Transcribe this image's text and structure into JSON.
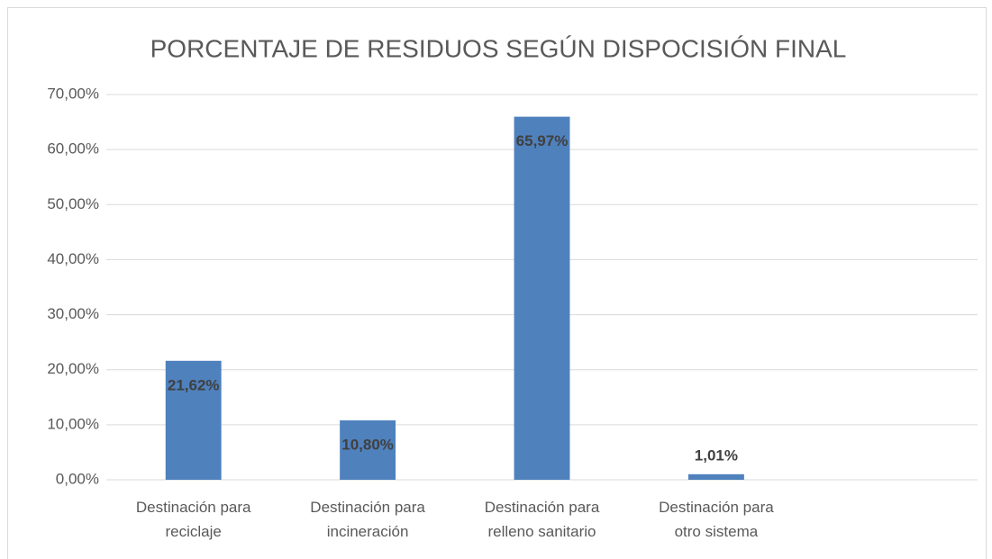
{
  "chart_data": {
    "type": "bar",
    "title": "PORCENTAJE DE RESIDUOS SEGÚN DISPOCISIÓN FINAL",
    "categories": [
      "Destinación para reciclaje",
      "Destinación para incineración",
      "Destinación para relleno sanitario",
      "Destinación para otro sistema",
      null
    ],
    "values": [
      21.62,
      10.8,
      65.97,
      1.01,
      null
    ],
    "value_labels": [
      "21,62%",
      "10,80%",
      "65,97%",
      "1,01%",
      null
    ],
    "color": "#4f81bd",
    "ylim": [
      0,
      70
    ],
    "yticks": [
      {
        "value": 0,
        "label": "0,00%"
      },
      {
        "value": 10,
        "label": "10,00%"
      },
      {
        "value": 20,
        "label": "20,00%"
      },
      {
        "value": 30,
        "label": "30,00%"
      },
      {
        "value": 40,
        "label": "40,00%"
      },
      {
        "value": 50,
        "label": "50,00%"
      },
      {
        "value": 60,
        "label": "60,00%"
      },
      {
        "value": 70,
        "label": "70,00%"
      }
    ],
    "grid": true
  }
}
